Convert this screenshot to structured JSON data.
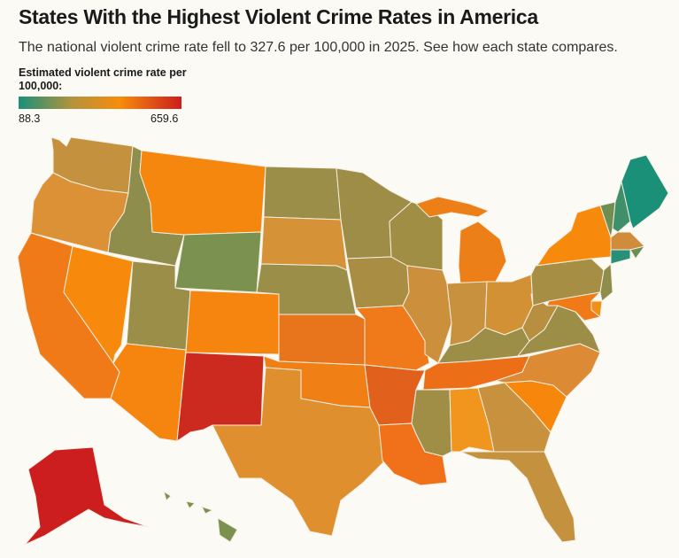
{
  "header": {
    "title": "States With the Highest Violent Crime Rates in America",
    "subtitle": "The national violent crime rate fell to 327.6 per 100,000 in 2025. See how each state compares."
  },
  "legend": {
    "title": "Estimated violent crime rate per 100,000:",
    "min_label": "88.3",
    "max_label": "659.6",
    "min": 88.3,
    "max": 659.6,
    "colors": [
      "#1a9079",
      "#b4933c",
      "#f78c0b",
      "#cc1e1e"
    ]
  },
  "states": [
    {
      "code": "WA",
      "color": "#c4913e"
    },
    {
      "code": "OR",
      "color": "#dd9136"
    },
    {
      "code": "CA",
      "color": "#f07a18"
    },
    {
      "code": "NV",
      "color": "#f7890c"
    },
    {
      "code": "ID",
      "color": "#8f8d4c"
    },
    {
      "code": "MT",
      "color": "#f5870f"
    },
    {
      "code": "WY",
      "color": "#7b9150"
    },
    {
      "code": "UT",
      "color": "#9a8e48"
    },
    {
      "code": "AZ",
      "color": "#f5850f"
    },
    {
      "code": "CO",
      "color": "#f5850f"
    },
    {
      "code": "NM",
      "color": "#cc2a1e"
    },
    {
      "code": "ND",
      "color": "#9a8e48"
    },
    {
      "code": "SD",
      "color": "#d69237"
    },
    {
      "code": "NE",
      "color": "#9a8e48"
    },
    {
      "code": "KS",
      "color": "#e8741b"
    },
    {
      "code": "OK",
      "color": "#f07f16"
    },
    {
      "code": "TX",
      "color": "#e08f2f"
    },
    {
      "code": "MN",
      "color": "#9d8d47"
    },
    {
      "code": "IA",
      "color": "#a88d43"
    },
    {
      "code": "MO",
      "color": "#f0791a"
    },
    {
      "code": "AR",
      "color": "#e0601c"
    },
    {
      "code": "LA",
      "color": "#f0711a"
    },
    {
      "code": "WI",
      "color": "#a08e45"
    },
    {
      "code": "IL",
      "color": "#cc8f3c"
    },
    {
      "code": "MI",
      "color": "#ec7f18"
    },
    {
      "code": "IN",
      "color": "#c8913e"
    },
    {
      "code": "OH",
      "color": "#d39136"
    },
    {
      "code": "KY",
      "color": "#9c8e47"
    },
    {
      "code": "TN",
      "color": "#ec6f18"
    },
    {
      "code": "MS",
      "color": "#a08e46"
    },
    {
      "code": "AL",
      "color": "#f0961f"
    },
    {
      "code": "GA",
      "color": "#c8913e"
    },
    {
      "code": "FL",
      "color": "#c4913e"
    },
    {
      "code": "SC",
      "color": "#f7870c"
    },
    {
      "code": "NC",
      "color": "#dc8a34"
    },
    {
      "code": "VA",
      "color": "#9c8e47"
    },
    {
      "code": "WV",
      "color": "#b88f40"
    },
    {
      "code": "PA",
      "color": "#a68e44"
    },
    {
      "code": "NY",
      "color": "#f7890c"
    },
    {
      "code": "VT",
      "color": "#6f8f52"
    },
    {
      "code": "NH",
      "color": "#3f8f6a"
    },
    {
      "code": "ME",
      "color": "#1a9079"
    },
    {
      "code": "MA",
      "color": "#d08c3a"
    },
    {
      "code": "RI",
      "color": "#6a8f55"
    },
    {
      "code": "CT",
      "color": "#289079"
    },
    {
      "code": "NJ",
      "color": "#8f8d4c"
    },
    {
      "code": "DE",
      "color": "#f09015"
    },
    {
      "code": "MD",
      "color": "#f07a18"
    },
    {
      "code": "AK",
      "color": "#cc1e1e"
    },
    {
      "code": "HI",
      "color": "#7a9150"
    }
  ]
}
